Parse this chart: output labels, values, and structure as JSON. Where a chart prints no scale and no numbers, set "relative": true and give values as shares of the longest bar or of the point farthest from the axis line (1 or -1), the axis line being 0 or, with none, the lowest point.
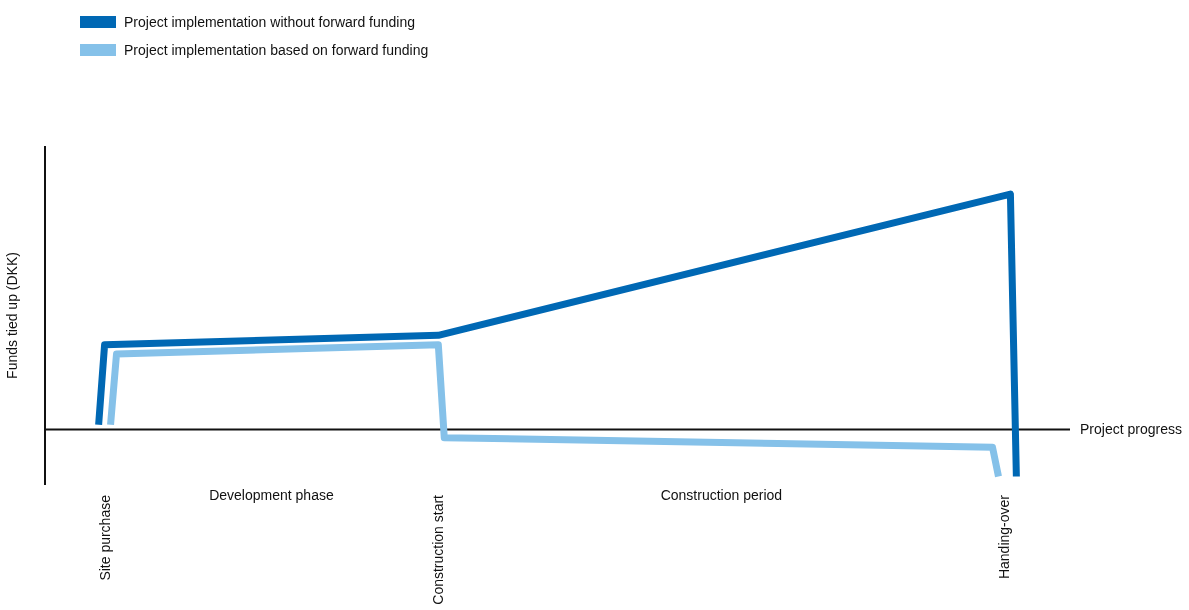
{
  "chart_data": {
    "type": "line",
    "relative": true,
    "ylabel": "Funds tied up (DKK)",
    "xlabel": "Project progress",
    "legend": "top left",
    "categories": [
      null,
      null,
      null,
      null,
      null,
      null,
      null,
      null,
      null,
      null,
      "Site purchase",
      null,
      null,
      null,
      null,
      null,
      null,
      null,
      null,
      null,
      null,
      null,
      null,
      null,
      null,
      null,
      null,
      null,
      null,
      null,
      null,
      null,
      null,
      null,
      null,
      null,
      null,
      null,
      null,
      null,
      null,
      null,
      null,
      null,
      null,
      null,
      null,
      null,
      null,
      null,
      null,
      null,
      null,
      null,
      null,
      null,
      null,
      null,
      null,
      null,
      null,
      null,
      null,
      null,
      null,
      null,
      "Construction start",
      null,
      null,
      null,
      null,
      null,
      null,
      null,
      null,
      null,
      null,
      null,
      null,
      null,
      null,
      null,
      null,
      null,
      null,
      null,
      null,
      null,
      null,
      null,
      null,
      null,
      null,
      null,
      null,
      null,
      null,
      null,
      null,
      null,
      null,
      null,
      null,
      null,
      null,
      null,
      null,
      null,
      null,
      null,
      null,
      null,
      null,
      null,
      null,
      null,
      null,
      null,
      null,
      null,
      null,
      null,
      null,
      null,
      null,
      null,
      null,
      null,
      null,
      null,
      null,
      null,
      null,
      null,
      null,
      null,
      null,
      null,
      null,
      null,
      null,
      null,
      null,
      null,
      null,
      null,
      null,
      null,
      null,
      null,
      null,
      null,
      null,
      null,
      null,
      null,
      null,
      null,
      null,
      null,
      null,
      "Handing-over",
      null,
      null,
      null,
      null,
      null,
      null,
      null,
      null,
      null,
      null,
      null
    ],
    "annotations": [
      "Development phase",
      "Construction period"
    ],
    "series": [
      {
        "name": "Project implementation without forward funding",
        "color": "#0068b4",
        "values": [
          null,
          null,
          null,
          null,
          null,
          null,
          null,
          null,
          null,
          0.02,
          0.36,
          null,
          null,
          null,
          null,
          null,
          null,
          null,
          null,
          null,
          null,
          null,
          null,
          null,
          null,
          null,
          null,
          null,
          null,
          null,
          null,
          null,
          null,
          null,
          null,
          null,
          null,
          null,
          null,
          null,
          null,
          null,
          null,
          null,
          null,
          null,
          null,
          null,
          null,
          null,
          null,
          null,
          null,
          null,
          null,
          null,
          null,
          null,
          null,
          null,
          null,
          null,
          null,
          null,
          null,
          null,
          0.4,
          null,
          null,
          null,
          null,
          null,
          null,
          null,
          null,
          null,
          null,
          null,
          null,
          null,
          null,
          null,
          null,
          null,
          null,
          null,
          null,
          null,
          null,
          null,
          null,
          null,
          null,
          null,
          null,
          null,
          null,
          null,
          null,
          null,
          null,
          null,
          null,
          null,
          null,
          null,
          null,
          null,
          null,
          null,
          null,
          null,
          null,
          null,
          null,
          null,
          null,
          null,
          null,
          null,
          null,
          null,
          null,
          null,
          null,
          null,
          null,
          null,
          null,
          null,
          null,
          null,
          null,
          null,
          null,
          null,
          null,
          null,
          null,
          null,
          null,
          null,
          null,
          null,
          null,
          null,
          null,
          null,
          null,
          null,
          null,
          null,
          null,
          null,
          null,
          null,
          null,
          null,
          null,
          null,
          null,
          null,
          1,
          -0.2,
          null,
          null,
          null,
          null,
          null,
          null,
          null,
          null,
          null
        ]
      },
      {
        "name": "Project implementation based on forward funding",
        "color": "#85c1e9",
        "values": [
          null,
          null,
          null,
          null,
          null,
          null,
          null,
          null,
          null,
          null,
          null,
          0.02,
          0.32,
          null,
          null,
          null,
          null,
          null,
          null,
          null,
          null,
          null,
          null,
          null,
          null,
          null,
          null,
          null,
          null,
          null,
          null,
          null,
          null,
          null,
          null,
          null,
          null,
          null,
          null,
          null,
          null,
          null,
          null,
          null,
          null,
          null,
          null,
          null,
          null,
          null,
          null,
          null,
          null,
          null,
          null,
          null,
          null,
          null,
          null,
          null,
          null,
          null,
          null,
          null,
          null,
          null,
          0.36,
          -0.035,
          null,
          null,
          null,
          null,
          null,
          null,
          null,
          null,
          null,
          null,
          null,
          null,
          null,
          null,
          null,
          null,
          null,
          null,
          null,
          null,
          null,
          null,
          null,
          null,
          null,
          null,
          null,
          null,
          null,
          null,
          null,
          null,
          null,
          null,
          null,
          null,
          null,
          null,
          null,
          null,
          null,
          null,
          null,
          null,
          null,
          null,
          null,
          null,
          null,
          null,
          null,
          null,
          null,
          null,
          null,
          -0.06,
          null,
          null,
          null,
          null,
          null,
          null,
          null,
          null,
          null,
          null,
          null,
          null,
          null,
          null,
          null,
          null,
          null,
          null,
          null,
          null,
          null,
          null,
          null,
          null,
          null,
          null,
          null,
          null,
          null,
          null,
          null,
          null,
          null,
          null,
          null,
          -0.076,
          -0.2,
          null,
          null,
          null,
          null,
          null,
          null,
          null,
          null,
          null,
          null,
          null,
          null
        ]
      }
    ]
  }
}
